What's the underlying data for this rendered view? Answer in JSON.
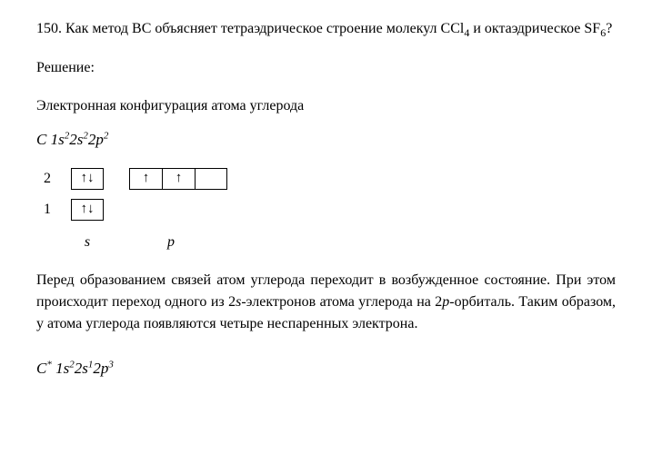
{
  "problem": {
    "number": "150.",
    "text_part1": "Как метод ВС объясняет тетраэдрическое строение молекул CCl",
    "sub1": "4",
    "text_part2": " и окта­эдрическое SF",
    "sub2": "6",
    "text_part3": "?"
  },
  "solution_label": "Решение:",
  "config_label": "Электронная конфигурация атома углерода",
  "formula1": {
    "element": "C",
    "parts": [
      {
        "base": "1",
        "ital": "s",
        "sup": "2"
      },
      {
        "base": "2",
        "ital": "s",
        "sup": "2"
      },
      {
        "base": "2",
        "ital": "p",
        "sup": "2"
      }
    ]
  },
  "orbital_diagram": {
    "rows": [
      {
        "level": "2",
        "s_box": "↑↓",
        "p_boxes": [
          "↑",
          "↑",
          ""
        ]
      },
      {
        "level": "1",
        "s_box": "↑↓",
        "p_boxes": null
      }
    ],
    "labels": {
      "s": "s",
      "p": "p"
    }
  },
  "explanation": {
    "part1": "Перед образованием связей атом углерода переходит в возбужденное состоя­ние. При этом происходит переход одного из 2",
    "ital1": "s",
    "part2": "-электронов атома углерода на 2",
    "ital2": "p",
    "part3": "-орбиталь. Таким образом, у атома углерода появляются четыре неспа­ренных электрона."
  },
  "formula2": {
    "element": "C",
    "star": "*",
    "parts": [
      {
        "base": "1",
        "ital": "s",
        "sup": "2"
      },
      {
        "base": "2",
        "ital": "s",
        "sup": "1"
      },
      {
        "base": "2",
        "ital": "p",
        "sup": "3"
      }
    ]
  }
}
